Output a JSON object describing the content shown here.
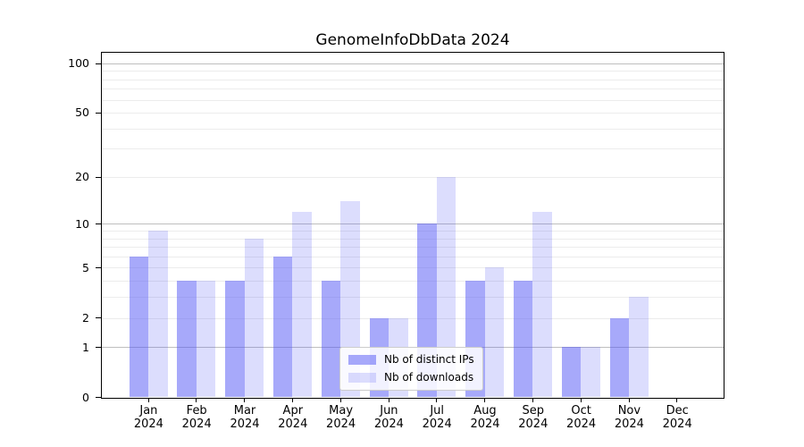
{
  "title": "GenomeInfoDbData 2024",
  "colors": {
    "bar_dark": "rgba(80,84,245,0.5)",
    "bar_light": "rgba(80,84,245,0.2)",
    "major_grid": "#bfbfbf",
    "minor_grid": "#ececec",
    "axis": "#000000",
    "legend_border": "#cccccc",
    "legend_bg": "rgba(255,255,255,0.85)"
  },
  "chart_data": {
    "type": "bar",
    "title": "GenomeInfoDbData 2024",
    "x_months": [
      "Jan",
      "Feb",
      "Mar",
      "Apr",
      "May",
      "Jun",
      "Jul",
      "Aug",
      "Sep",
      "Oct",
      "Nov",
      "Dec"
    ],
    "x_year": "2024",
    "categories": [
      "Jan 2024",
      "Feb 2024",
      "Mar 2024",
      "Apr 2024",
      "May 2024",
      "Jun 2024",
      "Jul 2024",
      "Aug 2024",
      "Sep 2024",
      "Oct 2024",
      "Nov 2024",
      "Dec 2024"
    ],
    "series": [
      {
        "name": "Nb of distinct IPs",
        "color": "rgba(80,84,245,0.5)",
        "values": [
          6,
          4,
          4,
          6,
          4,
          2,
          10,
          4,
          4,
          1,
          2,
          0
        ]
      },
      {
        "name": "Nb of downloads",
        "color": "rgba(80,84,245,0.2)",
        "values": [
          9,
          4,
          8,
          12,
          14,
          2,
          20,
          5,
          12,
          1,
          3,
          0
        ]
      }
    ],
    "yscale": "log1p",
    "ylim": [
      0,
      116
    ],
    "grid": true,
    "legend_position": "lower center",
    "y_axis": {
      "ticks": [
        100,
        50,
        20,
        10,
        5,
        2,
        1,
        0
      ],
      "tick_labels": [
        "100",
        "50",
        "20",
        "10",
        "5",
        "2",
        "1",
        "0"
      ],
      "major_gridlines": [
        1,
        10,
        100
      ],
      "minor_gridlines": [
        2,
        3,
        4,
        5,
        6,
        7,
        8,
        9,
        20,
        30,
        40,
        50,
        60,
        70,
        80,
        90
      ]
    },
    "xlabel": "",
    "ylabel": ""
  }
}
